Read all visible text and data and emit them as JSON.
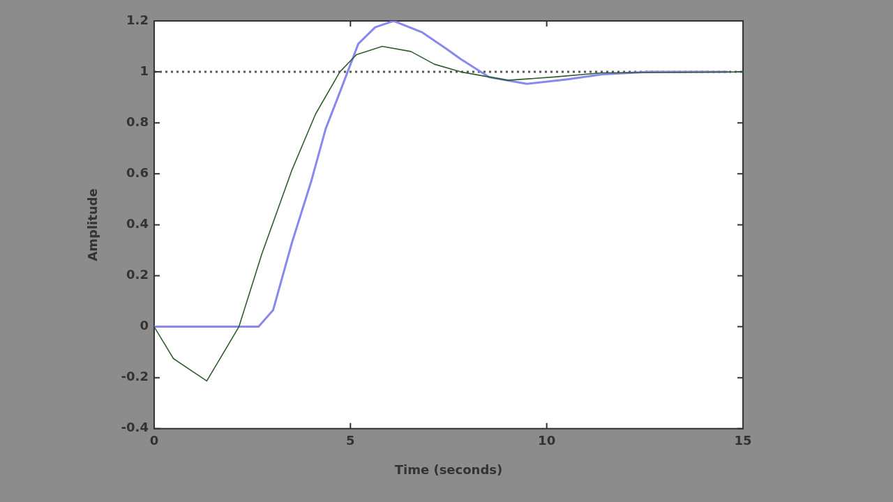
{
  "chart_data": {
    "type": "line",
    "xlabel": "Time (seconds)",
    "ylabel": "Amplitude",
    "xlim": [
      0,
      15
    ],
    "xticks": [
      0,
      5,
      10,
      15
    ],
    "ylim": [
      -0.4,
      1.2
    ],
    "yticks": [
      -0.4,
      -0.2,
      0,
      0.2,
      0.4,
      0.6,
      0.8,
      1,
      1.2
    ],
    "grid": false,
    "legend": false,
    "marker": "none",
    "line_style": "solid",
    "ref_lines": [
      {
        "axis": "y",
        "value": 1,
        "color": "#555555",
        "line_style": "dotted"
      }
    ],
    "series": [
      {
        "color": "#2f5f2f",
        "x": [
          0,
          0.49,
          1.34,
          2.16,
          2.74,
          3.51,
          4.11,
          4.73,
          5.15,
          5.81,
          6.54,
          7.14,
          7.81,
          9.0,
          10.2,
          11.4,
          15
        ],
        "values": [
          0,
          -0.125,
          -0.213,
          0,
          0.284,
          0.615,
          0.834,
          1.0,
          1.067,
          1.1,
          1.08,
          1.03,
          1.0,
          0.967,
          0.98,
          0.996,
          1.0
        ]
      },
      {
        "color": "#8888ee",
        "x": [
          0,
          2.66,
          3.03,
          3.51,
          4.0,
          4.37,
          4.73,
          5.2,
          5.63,
          6.1,
          6.83,
          7.45,
          7.81,
          8.53,
          9.49,
          10.5,
          11.4,
          12.6,
          14.6
        ],
        "values": [
          0,
          0,
          0.065,
          0.33,
          0.57,
          0.777,
          0.92,
          1.11,
          1.175,
          1.2,
          1.155,
          1.09,
          1.05,
          0.98,
          0.953,
          0.97,
          0.99,
          1.0,
          1.0
        ]
      }
    ]
  }
}
